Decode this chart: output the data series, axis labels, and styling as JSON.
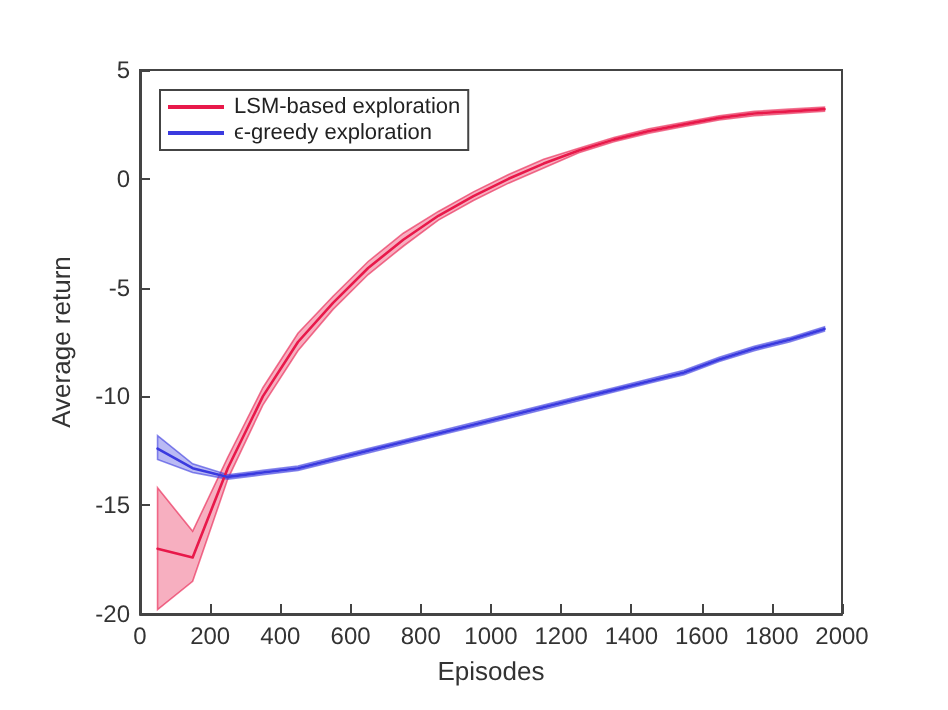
{
  "chart_data": {
    "type": "line",
    "xlabel": "Episodes",
    "ylabel": "Average return",
    "x": [
      50,
      150,
      250,
      350,
      450,
      550,
      650,
      750,
      850,
      950,
      1050,
      1150,
      1250,
      1350,
      1450,
      1550,
      1650,
      1750,
      1850,
      1950
    ],
    "xlim": [
      0,
      2000
    ],
    "xticks": [
      0,
      200,
      400,
      600,
      800,
      1000,
      1200,
      1400,
      1600,
      1800,
      2000
    ],
    "ylim": [
      -20,
      5
    ],
    "yticks": [
      -20,
      -15,
      -10,
      -5,
      0,
      5
    ],
    "grid": false,
    "legend": "top left",
    "marker": "none",
    "line_style": "solid",
    "series": [
      {
        "name": "LSM-based exploration",
        "color": "#e8194a",
        "values": [
          -17.0,
          -17.4,
          -13.3,
          -10.0,
          -7.5,
          -5.7,
          -4.1,
          -2.8,
          -1.7,
          -0.8,
          0.0,
          0.7,
          1.3,
          1.8,
          2.2,
          2.5,
          2.8,
          3.0,
          3.1,
          3.2
        ],
        "lower": [
          -19.8,
          -18.5,
          -13.8,
          -10.4,
          -7.9,
          -6.0,
          -4.4,
          -3.1,
          -1.9,
          -1.0,
          -0.2,
          0.5,
          1.2,
          1.7,
          2.1,
          2.4,
          2.7,
          2.9,
          3.0,
          3.1
        ],
        "upper": [
          -14.2,
          -16.2,
          -12.8,
          -9.6,
          -7.1,
          -5.4,
          -3.8,
          -2.5,
          -1.5,
          -0.6,
          0.2,
          0.9,
          1.4,
          1.9,
          2.3,
          2.6,
          2.9,
          3.1,
          3.2,
          3.3
        ]
      },
      {
        "name": "ϵ-greedy exploration",
        "color": "#3a3adf",
        "values": [
          -12.4,
          -13.3,
          -13.7,
          -13.5,
          -13.3,
          -12.9,
          -12.5,
          -12.1,
          -11.7,
          -11.3,
          -10.9,
          -10.5,
          -10.1,
          -9.7,
          -9.3,
          -8.9,
          -8.3,
          -7.8,
          -7.4,
          -6.9
        ],
        "lower": [
          -12.9,
          -13.5,
          -13.8,
          -13.6,
          -13.4,
          -13.0,
          -12.6,
          -12.2,
          -11.8,
          -11.4,
          -11.0,
          -10.6,
          -10.2,
          -9.8,
          -9.4,
          -9.0,
          -8.4,
          -7.9,
          -7.5,
          -7.0
        ],
        "upper": [
          -11.8,
          -13.1,
          -13.6,
          -13.4,
          -13.2,
          -12.8,
          -12.4,
          -12.0,
          -11.6,
          -11.2,
          -10.8,
          -10.4,
          -10.0,
          -9.6,
          -9.2,
          -8.8,
          -8.2,
          -7.7,
          -7.3,
          -6.8
        ]
      }
    ]
  }
}
